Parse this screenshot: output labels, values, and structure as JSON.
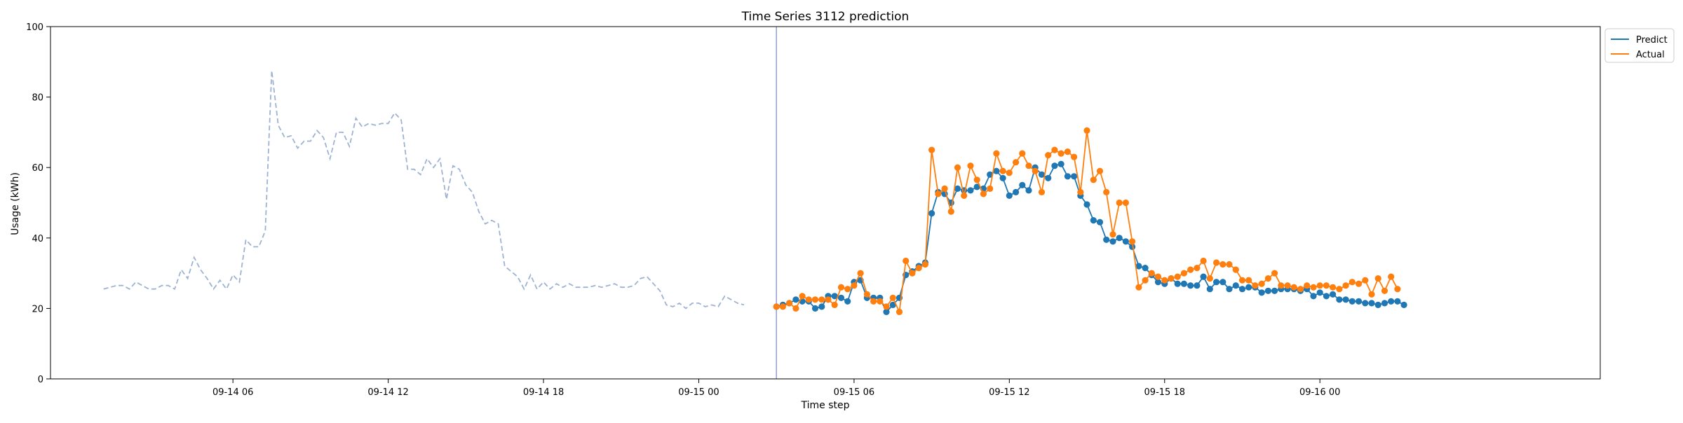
{
  "chart_data": {
    "type": "line",
    "title": "Time Series 3112 prediction",
    "xlabel": "Time step",
    "ylabel": "Usage (kWh)",
    "ylim": [
      0,
      100
    ],
    "y_ticks": [
      0,
      20,
      40,
      60,
      80,
      100
    ],
    "x_tick_labels": [
      "09-14 06",
      "09-14 12",
      "09-14 18",
      "09-15 00",
      "09-15 06",
      "09-15 12",
      "09-15 18",
      "09-16 00"
    ],
    "x_tick_times": [
      "2024-09-14T06:00",
      "2024-09-14T12:00",
      "2024-09-14T18:00",
      "2024-09-15T00:00",
      "2024-09-15T06:00",
      "2024-09-15T12:00",
      "2024-09-15T18:00",
      "2024-09-16T00:00"
    ],
    "xlim": [
      "2024-09-13T22:57",
      "2024-09-16T10:50"
    ],
    "grid": false,
    "legend_position": "upper-right-outside",
    "forecast_start": "2024-09-15T03:00",
    "colors": {
      "history": "#9eb3d2",
      "predict": "#1f77b4",
      "actual": "#ff7f0e",
      "divider": "#8fa1cf"
    },
    "history": {
      "start": "2024-09-14T01:00",
      "interval_minutes": 15,
      "values": [
        25.5,
        26.0,
        26.5,
        26.5,
        25.5,
        27.5,
        26.5,
        25.5,
        25.5,
        26.5,
        26.5,
        25.5,
        31.0,
        28.5,
        34.5,
        31.0,
        28.5,
        25.5,
        28.0,
        25.5,
        29.5,
        27.5,
        39.5,
        37.5,
        37.5,
        42.0,
        87.5,
        72.0,
        68.5,
        69.0,
        65.5,
        67.5,
        67.5,
        70.5,
        68.5,
        62.5,
        70.0,
        70.0,
        66.0,
        74.0,
        71.5,
        72.5,
        72.0,
        72.5,
        72.5,
        75.5,
        73.5,
        59.5,
        59.5,
        58.0,
        62.5,
        60.0,
        62.5,
        51.0,
        60.5,
        59.5,
        55.0,
        53.0,
        47.5,
        44.0,
        45.0,
        44.0,
        32.0,
        30.5,
        29.0,
        25.5,
        29.5,
        25.5,
        27.5,
        25.5,
        27.0,
        26.0,
        27.0,
        26.0,
        26.0,
        26.0,
        26.5,
        26.0,
        26.5,
        27.0,
        26.0,
        26.0,
        26.5,
        28.5,
        29.0,
        27.0,
        25.0,
        21.0,
        20.5,
        21.5,
        20.0,
        21.5,
        21.5,
        20.5,
        21.0,
        20.5,
        23.5,
        22.5,
        21.5,
        21.0
      ]
    },
    "series": [
      {
        "name": "Predict",
        "start": "2024-09-15T03:00",
        "interval_minutes": 15,
        "values": [
          20.5,
          21.0,
          21.5,
          22.5,
          22.0,
          22.0,
          20.0,
          20.5,
          23.5,
          23.5,
          23.0,
          22.0,
          27.5,
          28.0,
          23.0,
          23.0,
          23.0,
          19.0,
          21.0,
          23.0,
          29.5,
          30.5,
          32.0,
          33.0,
          47.0,
          53.0,
          52.5,
          50.0,
          54.0,
          53.5,
          53.5,
          54.5,
          54.0,
          58.0,
          59.0,
          57.0,
          52.0,
          53.0,
          55.0,
          53.5,
          60.0,
          58.0,
          57.0,
          60.5,
          61.0,
          57.5,
          57.5,
          52.0,
          49.5,
          45.0,
          44.5,
          39.5,
          39.0,
          40.0,
          39.0,
          37.5,
          32.0,
          31.5,
          29.5,
          27.5,
          27.0,
          28.5,
          27.0,
          27.0,
          26.5,
          26.5,
          29.0,
          25.5,
          27.5,
          27.5,
          25.5,
          26.5,
          25.5,
          26.0,
          26.0,
          24.5,
          25.0,
          25.0,
          25.5,
          25.5,
          25.5,
          25.0,
          25.5,
          23.5,
          24.5,
          23.5,
          24.0,
          22.5,
          22.5,
          22.0,
          22.0,
          21.5,
          21.5,
          21.0,
          21.5,
          22.0,
          22.0,
          21.0
        ]
      },
      {
        "name": "Actual",
        "start": "2024-09-15T03:00",
        "interval_minutes": 15,
        "values": [
          20.5,
          20.5,
          21.5,
          20.0,
          23.5,
          22.5,
          22.5,
          22.5,
          22.5,
          21.0,
          26.0,
          25.5,
          26.5,
          30.0,
          24.0,
          22.0,
          22.0,
          20.5,
          23.0,
          19.0,
          33.5,
          30.0,
          31.5,
          32.5,
          65.0,
          52.5,
          54.0,
          47.5,
          60.0,
          52.0,
          60.5,
          56.5,
          52.5,
          54.0,
          64.0,
          59.0,
          58.5,
          61.5,
          64.0,
          60.5,
          59.0,
          53.0,
          63.5,
          65.0,
          64.0,
          64.5,
          63.0,
          53.0,
          70.5,
          56.5,
          59.0,
          53.0,
          41.0,
          50.0,
          50.0,
          39.0,
          26.0,
          28.0,
          30.0,
          29.0,
          28.0,
          28.5,
          29.0,
          30.0,
          31.0,
          31.5,
          33.5,
          28.5,
          33.0,
          32.5,
          32.5,
          31.0,
          28.0,
          28.0,
          26.5,
          27.0,
          28.5,
          30.0,
          26.5,
          26.5,
          26.0,
          25.5,
          26.5,
          26.0,
          26.5,
          26.5,
          26.0,
          25.5,
          26.5,
          27.5,
          27.0,
          28.0,
          24.0,
          28.5,
          25.0,
          29.0,
          25.5
        ]
      }
    ]
  }
}
